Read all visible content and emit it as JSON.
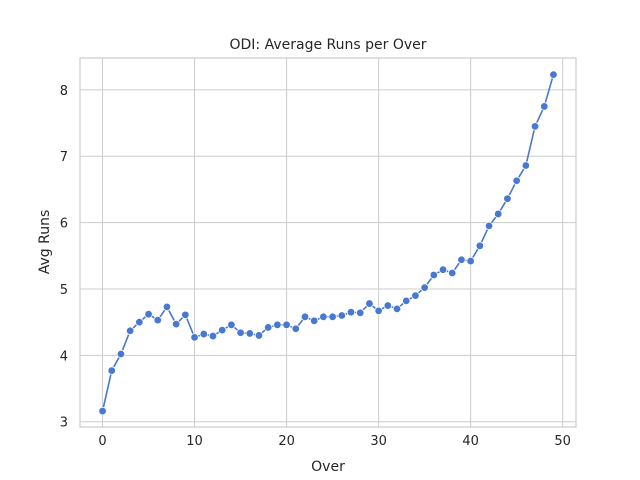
{
  "chart_data": {
    "type": "line",
    "title": "ODI: Average Runs per Over",
    "xlabel": "Over",
    "ylabel": "Avg Runs",
    "xlim": [
      -2.45,
      51.45
    ],
    "ylim": [
      2.92,
      8.48
    ],
    "xticks": [
      0,
      10,
      20,
      30,
      40,
      50
    ],
    "yticks": [
      3,
      4,
      5,
      6,
      7,
      8
    ],
    "grid": true,
    "marker": "circle",
    "color": "#4878cf",
    "series": [
      {
        "x": [
          0,
          1,
          2,
          3,
          4,
          5,
          6,
          7,
          8,
          9,
          10,
          11,
          12,
          13,
          14,
          15,
          16,
          17,
          18,
          19,
          20,
          21,
          22,
          23,
          24,
          25,
          26,
          27,
          28,
          29,
          30,
          31,
          32,
          33,
          34,
          35,
          36,
          37,
          38,
          39,
          40,
          41,
          42,
          43,
          44,
          45,
          46,
          47,
          48,
          49
        ],
        "values": [
          3.16,
          3.77,
          4.02,
          4.37,
          4.5,
          4.62,
          4.53,
          4.73,
          4.47,
          4.61,
          4.27,
          4.32,
          4.29,
          4.38,
          4.46,
          4.34,
          4.33,
          4.3,
          4.42,
          4.46,
          4.46,
          4.4,
          4.58,
          4.52,
          4.58,
          4.58,
          4.6,
          4.65,
          4.64,
          4.78,
          4.67,
          4.75,
          4.7,
          4.82,
          4.9,
          5.02,
          5.21,
          5.29,
          5.24,
          5.44,
          5.42,
          5.65,
          5.95,
          6.13,
          6.36,
          6.63,
          6.86,
          7.45,
          7.75,
          8.23
        ]
      }
    ]
  }
}
